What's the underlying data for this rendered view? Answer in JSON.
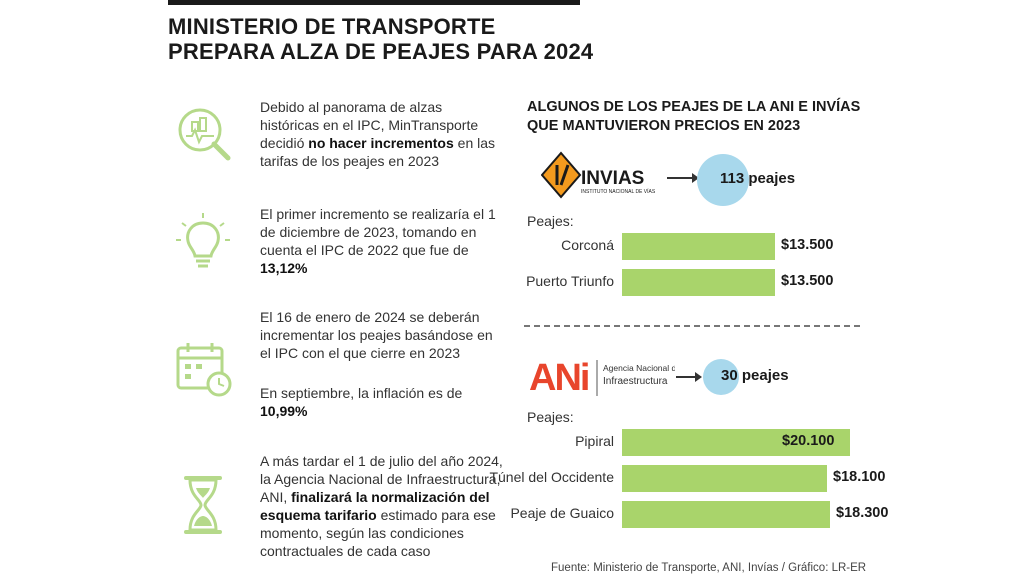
{
  "header": {
    "title_line1": "MINISTERIO DE TRANSPORTE",
    "title_line2": "PREPARA ALZA DE PEAJES PARA 2024"
  },
  "items": [
    {
      "icon": "magnifier-chart-icon",
      "pre": "Debido al panorama de alzas históricas en el IPC, MinTransporte decidió ",
      "bold": "no hacer incrementos",
      "post": " en las tarifas de los peajes en 2023"
    },
    {
      "icon": "lightbulb-icon",
      "pre": "El primer incremento se realizaría el 1 de diciembre de 2023, tomando en cuenta el IPC de 2022 que fue de ",
      "bold": "13,12%",
      "post": ""
    },
    {
      "icon": "calendar-clock-icon",
      "pre": "El 16 de enero de 2024 se deberán incrementar los peajes basándose en el IPC con el que cierre en 2023",
      "bold": "",
      "post": ""
    },
    {
      "icon": "",
      "pre": "En septiembre, la inflación es de ",
      "bold": "10,99%",
      "post": ""
    },
    {
      "icon": "hourglass-icon",
      "pre": "A más tardar el 1 de julio del año 2024, la Agencia Nacional de Infraestructura, ANI, ",
      "bold": "finalizará la normalización del esquema tarifario",
      "post": " estimado para ese momento, según las condiciones contractuales de cada caso"
    }
  ],
  "right_title": {
    "line1": "ALGUNOS DE LOS PEAJES DE LA ANI E INVÍAS",
    "line2": "QUE MANTUVIERON PRECIOS EN 2023"
  },
  "invias": {
    "logo_text": "INVIAS",
    "logo_sub": "INSTITUTO NACIONAL DE VÍAS",
    "count_label": "113 peajes"
  },
  "ani": {
    "logo_text": "ANi",
    "logo_sub1": "Agencia Nacional de",
    "logo_sub2": "Infraestructura",
    "count_label": "30 peajes"
  },
  "colors": {
    "bar": "#a9d46b",
    "circle": "#a8d8ec",
    "invias_orange": "#f39a1e",
    "ani_red": "#e8452c",
    "icon_green": "#b5d98a"
  },
  "chart_data": [
    {
      "type": "bar",
      "title": "INVIAS - Peajes",
      "group_label": "Peajes:",
      "categories": [
        "Corconá",
        "Puerto Triunfo"
      ],
      "values": [
        13500,
        13500
      ],
      "value_labels": [
        "$13.500",
        "$13.500"
      ],
      "xlim": [
        0,
        20100
      ]
    },
    {
      "type": "bar",
      "title": "ANI - Peajes",
      "group_label": "Peajes:",
      "categories": [
        "Pipiral",
        "Túnel del Occidente",
        "Peaje de Guaico"
      ],
      "values": [
        20100,
        18100,
        18300
      ],
      "value_labels": [
        "$20.100",
        "$18.100",
        "$18.300"
      ],
      "xlim": [
        0,
        20100
      ]
    }
  ],
  "source": "Fuente: Ministerio de Transporte, ANI, Invías / Gráfico: LR-ER"
}
